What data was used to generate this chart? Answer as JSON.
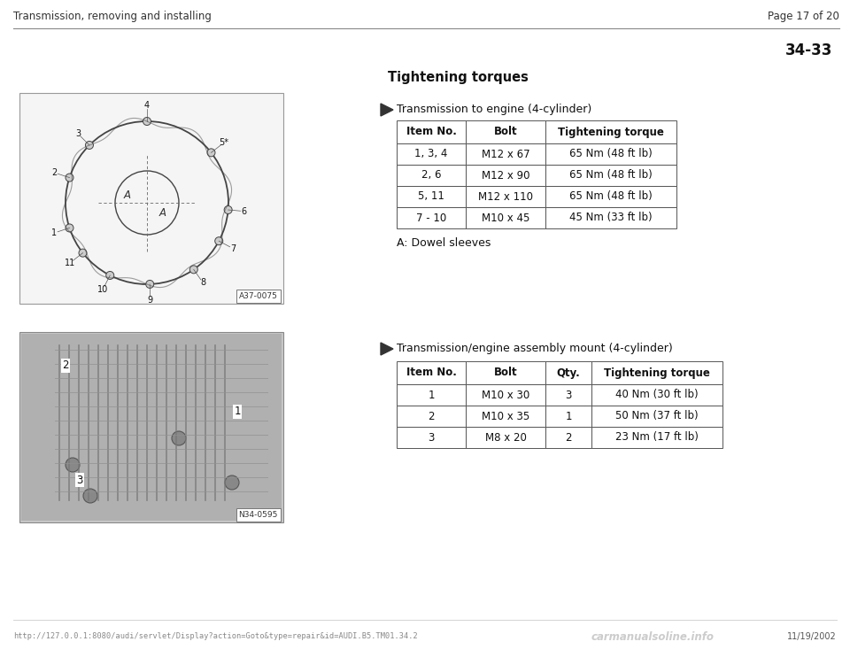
{
  "bg_color": "#ffffff",
  "header_left": "Transmission, removing and installing",
  "header_right": "Page 17 of 20",
  "page_number": "34-33",
  "section_title": "Tightening torques",
  "section1_bullet": "Transmission to engine (4-cylinder)",
  "section1_note": "A: Dowel sleeves",
  "table1_headers": [
    "Item No.",
    "Bolt",
    "Tightening torque"
  ],
  "table1_rows": [
    [
      "1, 3, 4",
      "M12 x 67",
      "65 Nm (48 ft lb)"
    ],
    [
      "2, 6",
      "M12 x 90",
      "65 Nm (48 ft lb)"
    ],
    [
      "5, 11",
      "M12 x 110",
      "65 Nm (48 ft lb)"
    ],
    [
      "7 - 10",
      "M10 x 45",
      "45 Nm (33 ft lb)"
    ]
  ],
  "section2_bullet": "Transmission/engine assembly mount (4-cylinder)",
  "table2_headers": [
    "Item No.",
    "Bolt",
    "Qty.",
    "Tightening torque"
  ],
  "table2_rows": [
    [
      "1",
      "M10 x 30",
      "3",
      "40 Nm (30 ft lb)"
    ],
    [
      "2",
      "M10 x 35",
      "1",
      "50 Nm (37 ft lb)"
    ],
    [
      "3",
      "M8 x 20",
      "2",
      "23 Nm (17 ft lb)"
    ]
  ],
  "footer_url": "http://127.0.0.1:8080/audi/servlet/Display?action=Goto&type=repair&id=AUDI.B5.TM01.34.2",
  "footer_watermark": "carmanualsoline.info",
  "footer_date": "11/19/2002",
  "img1_label": "A37-0075",
  "img2_label": "N34-0595",
  "nums_angles": [
    [
      "4",
      90
    ],
    [
      "5*",
      38
    ],
    [
      "3",
      135
    ],
    [
      "2",
      162
    ],
    [
      "1",
      198
    ],
    [
      "11",
      218
    ],
    [
      "10",
      243
    ],
    [
      "9",
      272
    ],
    [
      "8",
      305
    ],
    [
      "7",
      332
    ],
    [
      "6",
      355
    ]
  ]
}
